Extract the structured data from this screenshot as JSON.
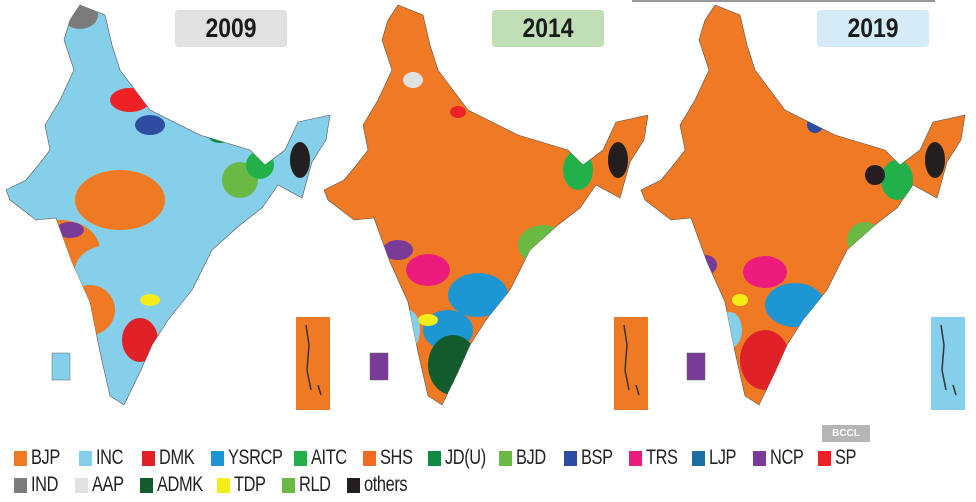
{
  "maps": [
    {
      "year": "2009",
      "label_color": "#e0e1e3",
      "base_party": "INC",
      "lakshadweep": "INC",
      "andaman": "BJP"
    },
    {
      "year": "2014",
      "label_color": "#c0dfb6",
      "base_party": "BJP",
      "lakshadweep": "NCP",
      "andaman": "BJP"
    },
    {
      "year": "2019",
      "label_color": "#d5ecf8",
      "base_party": "BJP",
      "lakshadweep": "NCP",
      "andaman": "INC"
    }
  ],
  "legend": {
    "row1": [
      {
        "label": "BJP",
        "color": "#f07a24"
      },
      {
        "label": "INC",
        "color": "#86cfea"
      },
      {
        "label": "DMK",
        "color": "#e02228"
      },
      {
        "label": "YSRCP",
        "color": "#1f96d4"
      },
      {
        "label": "AITC",
        "color": "#22b04b"
      },
      {
        "label": "SHS",
        "color": "#f26b22"
      },
      {
        "label": "JD(U)",
        "color": "#118a45"
      },
      {
        "label": "BJD",
        "color": "#6ab945"
      },
      {
        "label": "BSP",
        "color": "#2e4da0"
      },
      {
        "label": "TRS",
        "color": "#ec1c7d"
      },
      {
        "label": "LJP",
        "color": "#1b6fa3"
      },
      {
        "label": "NCP",
        "color": "#7a3a98"
      },
      {
        "label": "SP",
        "color": "#ee2226"
      }
    ],
    "row2": [
      {
        "label": "IND",
        "color": "#7b7b7b"
      },
      {
        "label": "AAP",
        "color": "#e1e1e1"
      },
      {
        "label": "ADMK",
        "color": "#135c2d"
      },
      {
        "label": "TDP",
        "color": "#f4ec17"
      },
      {
        "label": "RLD",
        "color": "#6ab945"
      },
      {
        "label": "others",
        "color": "#231f20"
      }
    ]
  },
  "watermark": "BCCL"
}
